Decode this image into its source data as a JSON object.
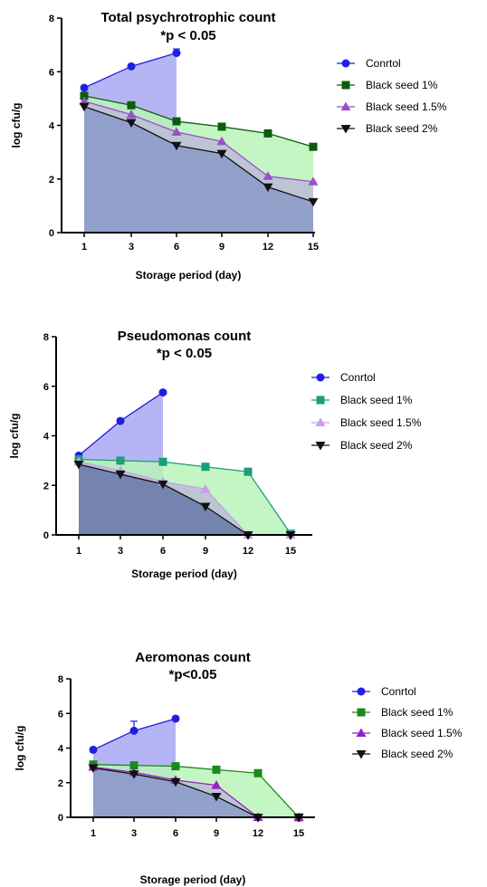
{
  "chart_data": [
    {
      "type": "area",
      "title": "Total psychrotrophic count",
      "subtitle": "*p < 0.05",
      "xlabel": "Storage period (day)",
      "ylabel": "log cfu/g",
      "x": [
        1,
        3,
        6,
        9,
        12,
        15
      ],
      "xtick_labels": [
        "1",
        "3",
        "6",
        "9",
        "12",
        "15"
      ],
      "yticks": [
        0,
        2,
        4,
        6,
        8
      ],
      "ylim": [
        0,
        8
      ],
      "legend_position": "right",
      "series": [
        {
          "name": "Conrtol",
          "marker": "circle",
          "color": "#1f1fe0",
          "fill": "#a8a8f5",
          "values": [
            5.4,
            6.2,
            6.7,
            null,
            null,
            null
          ],
          "error": [
            0,
            0,
            0.15,
            null,
            null,
            null
          ]
        },
        {
          "name": "Black seed 1%",
          "marker": "square",
          "color": "#0d5c0d",
          "fill": "#b8f5b8",
          "values": [
            5.1,
            4.75,
            4.15,
            3.95,
            3.7,
            3.2
          ]
        },
        {
          "name": "Black seed 1.5%",
          "marker": "triangle-up",
          "color": "#9b4fc8",
          "fill": "#bcbcd8",
          "values": [
            4.9,
            4.4,
            3.75,
            3.4,
            2.1,
            1.9
          ]
        },
        {
          "name": "Black seed 2%",
          "marker": "triangle-down",
          "color": "#111111",
          "fill": "#8a9ac8",
          "values": [
            4.7,
            4.1,
            3.25,
            2.95,
            1.7,
            1.15
          ]
        }
      ]
    },
    {
      "type": "area",
      "title": "Pseudomonas count",
      "subtitle": "*p < 0.05",
      "xlabel": "Storage period (day)",
      "ylabel": "log cfu/g",
      "x": [
        1,
        3,
        6,
        9,
        12,
        15
      ],
      "xtick_labels": [
        "1",
        "3",
        "6",
        "9",
        "12",
        "15"
      ],
      "yticks": [
        0,
        2,
        4,
        6,
        8
      ],
      "ylim": [
        0,
        8
      ],
      "legend_position": "right",
      "series": [
        {
          "name": "Conrtol",
          "marker": "circle",
          "color": "#1f1fe0",
          "fill": "#a8a8f5",
          "values": [
            3.2,
            4.6,
            5.75,
            null,
            null,
            null
          ]
        },
        {
          "name": "Black seed 1%",
          "marker": "square",
          "color": "#1a9e75",
          "fill": "#b8f5b8",
          "values": [
            3.05,
            3.0,
            2.95,
            2.75,
            2.55,
            0.05
          ]
        },
        {
          "name": "Black seed 1.5%",
          "marker": "triangle-up",
          "color": "#c89ee8",
          "fill": "#bcbcd8",
          "values": [
            2.95,
            2.6,
            2.15,
            1.85,
            0.0,
            0.0
          ]
        },
        {
          "name": "Black seed 2%",
          "marker": "triangle-down",
          "color": "#111111",
          "fill": "#6878a8",
          "values": [
            2.85,
            2.45,
            2.05,
            1.15,
            0.0,
            0.0
          ]
        }
      ]
    },
    {
      "type": "area",
      "title": "Aeromonas count",
      "subtitle": "*p<0.05",
      "xlabel": "Storage period (day)",
      "ylabel": "log cfu/g",
      "x": [
        1,
        3,
        6,
        9,
        12,
        15
      ],
      "xtick_labels": [
        "1",
        "3",
        "6",
        "9",
        "12",
        "15"
      ],
      "yticks": [
        0,
        2,
        4,
        6,
        8
      ],
      "ylim": [
        0,
        8
      ],
      "legend_position": "right",
      "series": [
        {
          "name": "Conrtol",
          "marker": "circle",
          "color": "#1f1fe0",
          "fill": "#a8a8f5",
          "values": [
            3.9,
            5.0,
            5.7,
            null,
            null,
            null
          ],
          "error": [
            0,
            0.55,
            0,
            null,
            null,
            null
          ]
        },
        {
          "name": "Black seed 1%",
          "marker": "square",
          "color": "#1a8a1a",
          "fill": "#b8f5b8",
          "values": [
            3.05,
            3.0,
            2.95,
            2.75,
            2.55,
            0.0
          ]
        },
        {
          "name": "Black seed 1.5%",
          "marker": "triangle-up",
          "color": "#9a1ec8",
          "fill": "#bcbcd8",
          "values": [
            2.9,
            2.6,
            2.15,
            1.85,
            0.0,
            0.0
          ]
        },
        {
          "name": "Black seed 2%",
          "marker": "triangle-down",
          "color": "#111111",
          "fill": "#8a9ac8",
          "values": [
            2.85,
            2.5,
            2.05,
            1.2,
            0.0,
            0.0
          ]
        }
      ]
    }
  ]
}
